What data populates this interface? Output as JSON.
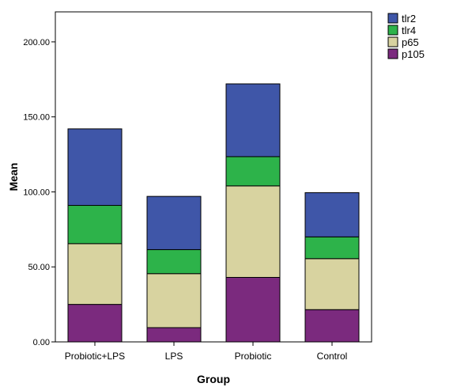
{
  "chart_data": {
    "type": "bar",
    "stacked": true,
    "categories": [
      "Probiotic+LPS",
      "LPS",
      "Probiotic",
      "Control"
    ],
    "series": [
      {
        "name": "p105",
        "values": [
          25,
          9.5,
          43,
          21.5
        ],
        "color": "#7B2A7E"
      },
      {
        "name": "p65",
        "values": [
          40.5,
          36,
          61,
          34
        ],
        "color": "#D8D3A0"
      },
      {
        "name": "tlr4",
        "values": [
          25.5,
          16,
          19.5,
          14.5
        ],
        "color": "#2DB34A"
      },
      {
        "name": "tlr2",
        "values": [
          51,
          35.5,
          48.5,
          29.5
        ],
        "color": "#3F56A8"
      }
    ],
    "xlabel": "Group",
    "ylabel": "Mean",
    "ylim": [
      0,
      220
    ],
    "yticks": [
      0,
      50,
      100,
      150,
      200
    ],
    "ytick_labels": [
      "0.00",
      "50.00",
      "100.00",
      "150.00",
      "200.00"
    ],
    "grid": false,
    "legend": {
      "position": "top-right",
      "order": [
        "tlr2",
        "tlr4",
        "p65",
        "p105"
      ]
    }
  }
}
